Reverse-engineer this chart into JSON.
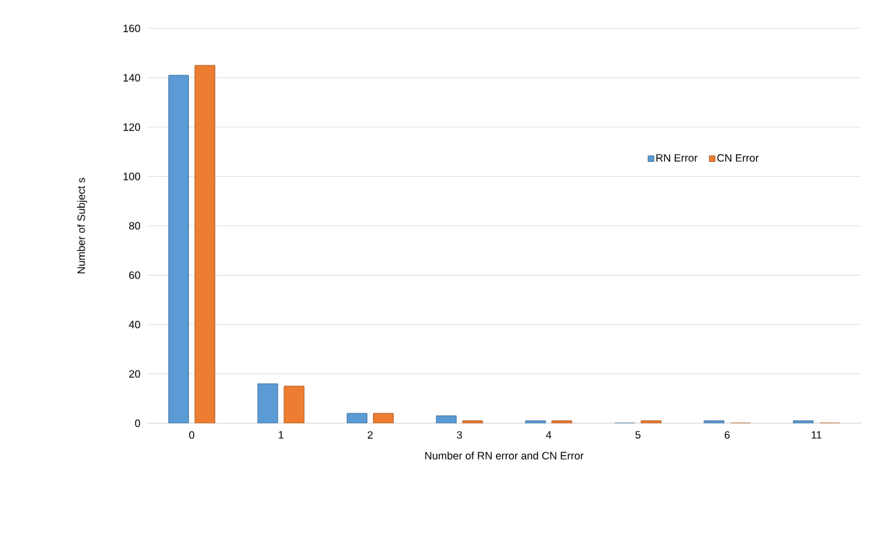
{
  "chart_data": {
    "type": "bar",
    "xlabel": "Number of RN error and CN Error",
    "ylabel": "Number of Subject s",
    "categories": [
      "0",
      "1",
      "2",
      "3",
      "4",
      "5",
      "6",
      "11"
    ],
    "series": [
      {
        "name": "RN Error",
        "color": "#5b9bd5",
        "values": [
          141,
          16,
          4,
          3,
          1,
          0,
          1,
          1
        ]
      },
      {
        "name": "CN Error",
        "color": "#ed7d31",
        "values": [
          145,
          15,
          4,
          1,
          1,
          1,
          0,
          0
        ]
      }
    ],
    "ylim": [
      0,
      160
    ],
    "yticks": [
      0,
      20,
      40,
      60,
      80,
      100,
      120,
      140,
      160
    ],
    "grid": "y",
    "legend": "right"
  }
}
